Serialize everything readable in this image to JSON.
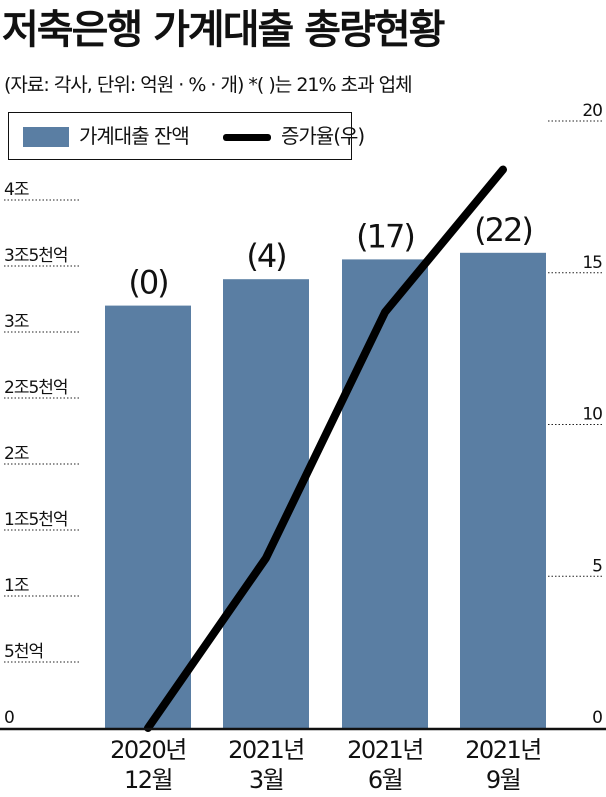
{
  "title": "저축은행 가계대출 총량현황",
  "subtitle": "(자료: 각사, 단위: 억원 · % · 개) *( )는 21% 초과 업체",
  "chart_data": {
    "type": "bar",
    "categories": [
      "2020년\n12월",
      "2021년\n3월",
      "2021년\n6월",
      "2021년\n9월"
    ],
    "series": [
      {
        "name": "가계대출 잔액",
        "type": "bar",
        "axis": "left",
        "color": "#5a7ea3",
        "values": [
          32000,
          34000,
          35500,
          36000
        ]
      },
      {
        "name": "증가율(우)",
        "type": "line",
        "axis": "right",
        "color": "#000000",
        "values": [
          0,
          5.6,
          13.7,
          18.4
        ]
      }
    ],
    "data_labels": [
      "(0)",
      "(4)",
      "(17)",
      "(22)"
    ],
    "left_axis": {
      "ylim": [
        0,
        45000
      ],
      "ticks": [
        {
          "value": 0,
          "label": "0"
        },
        {
          "value": 5000,
          "label": "5천억"
        },
        {
          "value": 10000,
          "label": "1조"
        },
        {
          "value": 15000,
          "label": "1조5천억"
        },
        {
          "value": 20000,
          "label": "2조"
        },
        {
          "value": 25000,
          "label": "2조5천억"
        },
        {
          "value": 30000,
          "label": "3조"
        },
        {
          "value": 35000,
          "label": "3조5천억"
        },
        {
          "value": 40000,
          "label": "4조"
        }
      ]
    },
    "right_axis": {
      "ylim": [
        0,
        20
      ],
      "ticks": [
        {
          "value": 0,
          "label": "0"
        },
        {
          "value": 5,
          "label": "5"
        },
        {
          "value": 10,
          "label": "10"
        },
        {
          "value": 15,
          "label": "15"
        },
        {
          "value": 20,
          "label": "20"
        }
      ]
    },
    "legend": "top-left",
    "grid": false
  },
  "colors": {
    "bar": "#5a7ea3",
    "line": "#000000",
    "text": "#111111"
  }
}
